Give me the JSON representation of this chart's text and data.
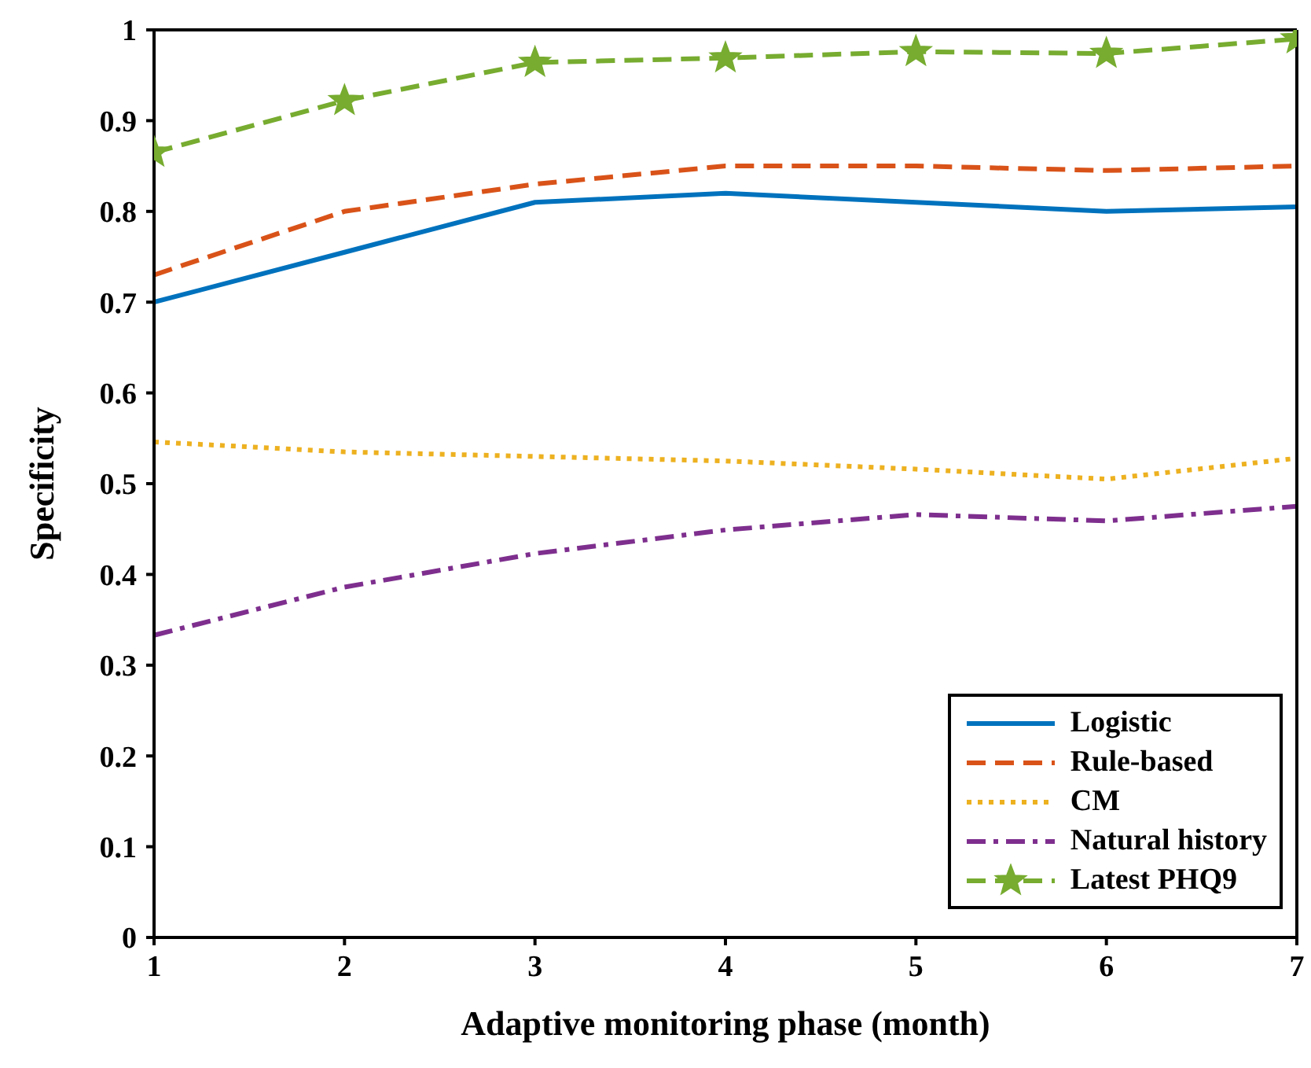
{
  "chart_data": {
    "type": "line",
    "xlabel": "Adaptive monitoring phase (month)",
    "ylabel": "Specificity",
    "x": [
      1,
      2,
      3,
      4,
      5,
      6,
      7
    ],
    "series": [
      {
        "name": "Logistic",
        "color": "#0072bd",
        "line_style": "solid",
        "marker": "none",
        "values": [
          0.7,
          0.755,
          0.81,
          0.82,
          0.81,
          0.8,
          0.805
        ]
      },
      {
        "name": "Rule-based",
        "color": "#d95319",
        "line_style": "dashed",
        "marker": "none",
        "values": [
          0.73,
          0.8,
          0.83,
          0.85,
          0.85,
          0.845,
          0.85
        ]
      },
      {
        "name": "CM",
        "color": "#edb120",
        "line_style": "dotted",
        "marker": "none",
        "values": [
          0.546,
          0.535,
          0.53,
          0.525,
          0.516,
          0.505,
          0.528
        ]
      },
      {
        "name": "Natural history",
        "color": "#7e2f8e",
        "line_style": "dashdot",
        "marker": "none",
        "values": [
          0.333,
          0.386,
          0.423,
          0.449,
          0.466,
          0.459,
          0.475
        ]
      },
      {
        "name": "Latest PHQ9",
        "color": "#77ac30",
        "line_style": "dashed",
        "marker": "star",
        "values": [
          0.865,
          0.922,
          0.964,
          0.969,
          0.976,
          0.974,
          0.99
        ]
      }
    ],
    "xlim": [
      1,
      7
    ],
    "xticks": [
      1,
      2,
      3,
      4,
      5,
      6,
      7
    ],
    "ylim": [
      0,
      1
    ],
    "yticks": [
      0,
      0.1,
      0.2,
      0.3,
      0.4,
      0.5,
      0.6,
      0.7,
      0.8,
      0.9,
      1
    ],
    "grid": false,
    "legend": "bottom right"
  }
}
